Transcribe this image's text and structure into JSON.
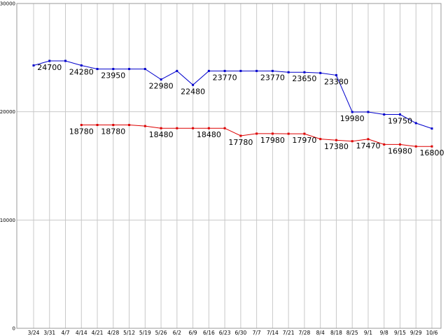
{
  "chart_data": {
    "type": "line",
    "title": "",
    "xlabel": "",
    "ylabel": "",
    "ylim": [
      0,
      30000
    ],
    "y_ticks": [
      "0",
      "10000",
      "20000",
      "30000"
    ],
    "grid": true,
    "categories": [
      "3/24",
      "3/31",
      "4/7",
      "4/14",
      "4/21",
      "4/28",
      "5/12",
      "5/19",
      "5/26",
      "6/2",
      "6/9",
      "6/16",
      "6/23",
      "6/30",
      "7/7",
      "7/14",
      "7/21",
      "7/28",
      "8/4",
      "8/18",
      "8/25",
      "9/1",
      "9/8",
      "9/15",
      "9/29",
      "10/6"
    ],
    "series": [
      {
        "color": "#0000cc",
        "values": [
          24280,
          24700,
          24700,
          24280,
          23950,
          23950,
          23950,
          23950,
          22980,
          23770,
          22480,
          23770,
          23770,
          23770,
          23770,
          23770,
          23650,
          23650,
          23580,
          23380,
          19980,
          19980,
          19750,
          19750,
          18950,
          18450
        ],
        "labels": [
          "",
          "24700",
          "",
          "24280",
          "",
          "23950",
          "",
          "",
          "22980",
          "",
          "22480",
          "",
          "23770",
          "",
          "",
          "23770",
          "",
          "23650",
          "",
          "23380",
          "19980",
          "",
          "",
          "19750",
          "",
          ""
        ]
      },
      {
        "color": "#dd0000",
        "values": [
          null,
          null,
          null,
          18780,
          18780,
          18780,
          18780,
          18680,
          18480,
          18480,
          18480,
          18480,
          18480,
          17780,
          17980,
          17980,
          17970,
          17970,
          17480,
          17380,
          17280,
          17470,
          16980,
          16980,
          16800,
          16800
        ],
        "labels": [
          "",
          "",
          "",
          "18780",
          "",
          "18780",
          "",
          "",
          "18480",
          "",
          "",
          "18480",
          "",
          "17780",
          "",
          "17980",
          "",
          "17970",
          "",
          "17380",
          "",
          "17470",
          "",
          "16980",
          "",
          "16800"
        ]
      }
    ]
  }
}
